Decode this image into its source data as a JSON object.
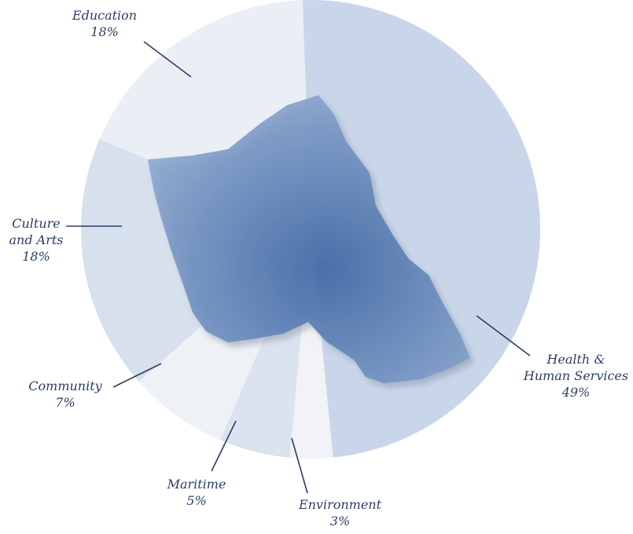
{
  "chart_data": {
    "type": "pie",
    "title": "",
    "slices": [
      {
        "label_lines": [
          "Health &",
          "Human Services"
        ],
        "value_text": "49%",
        "value": 49,
        "color": "#c9d6ea"
      },
      {
        "label_lines": [
          "Environment"
        ],
        "value_text": "3%",
        "value": 3,
        "color": "#f1f3f7"
      },
      {
        "label_lines": [
          "Maritime"
        ],
        "value_text": "5%",
        "value": 5,
        "color": "#dbe3ee"
      },
      {
        "label_lines": [
          "Community"
        ],
        "value_text": "7%",
        "value": 7,
        "color": "#eef1f6"
      },
      {
        "label_lines": [
          "Culture",
          "and Arts"
        ],
        "value_text": "18%",
        "value": 18,
        "color": "#d7e0ed"
      },
      {
        "label_lines": [
          "Education"
        ],
        "value_text": "18%",
        "value": 18,
        "color": "#eaeef5"
      }
    ]
  },
  "colors": {
    "label_text": "#2b3d66",
    "leader_line": "#2b3d66",
    "island_fill_dark": "#3e68a6",
    "island_fill_light": "#8ea9d0",
    "background": "#ffffff"
  }
}
